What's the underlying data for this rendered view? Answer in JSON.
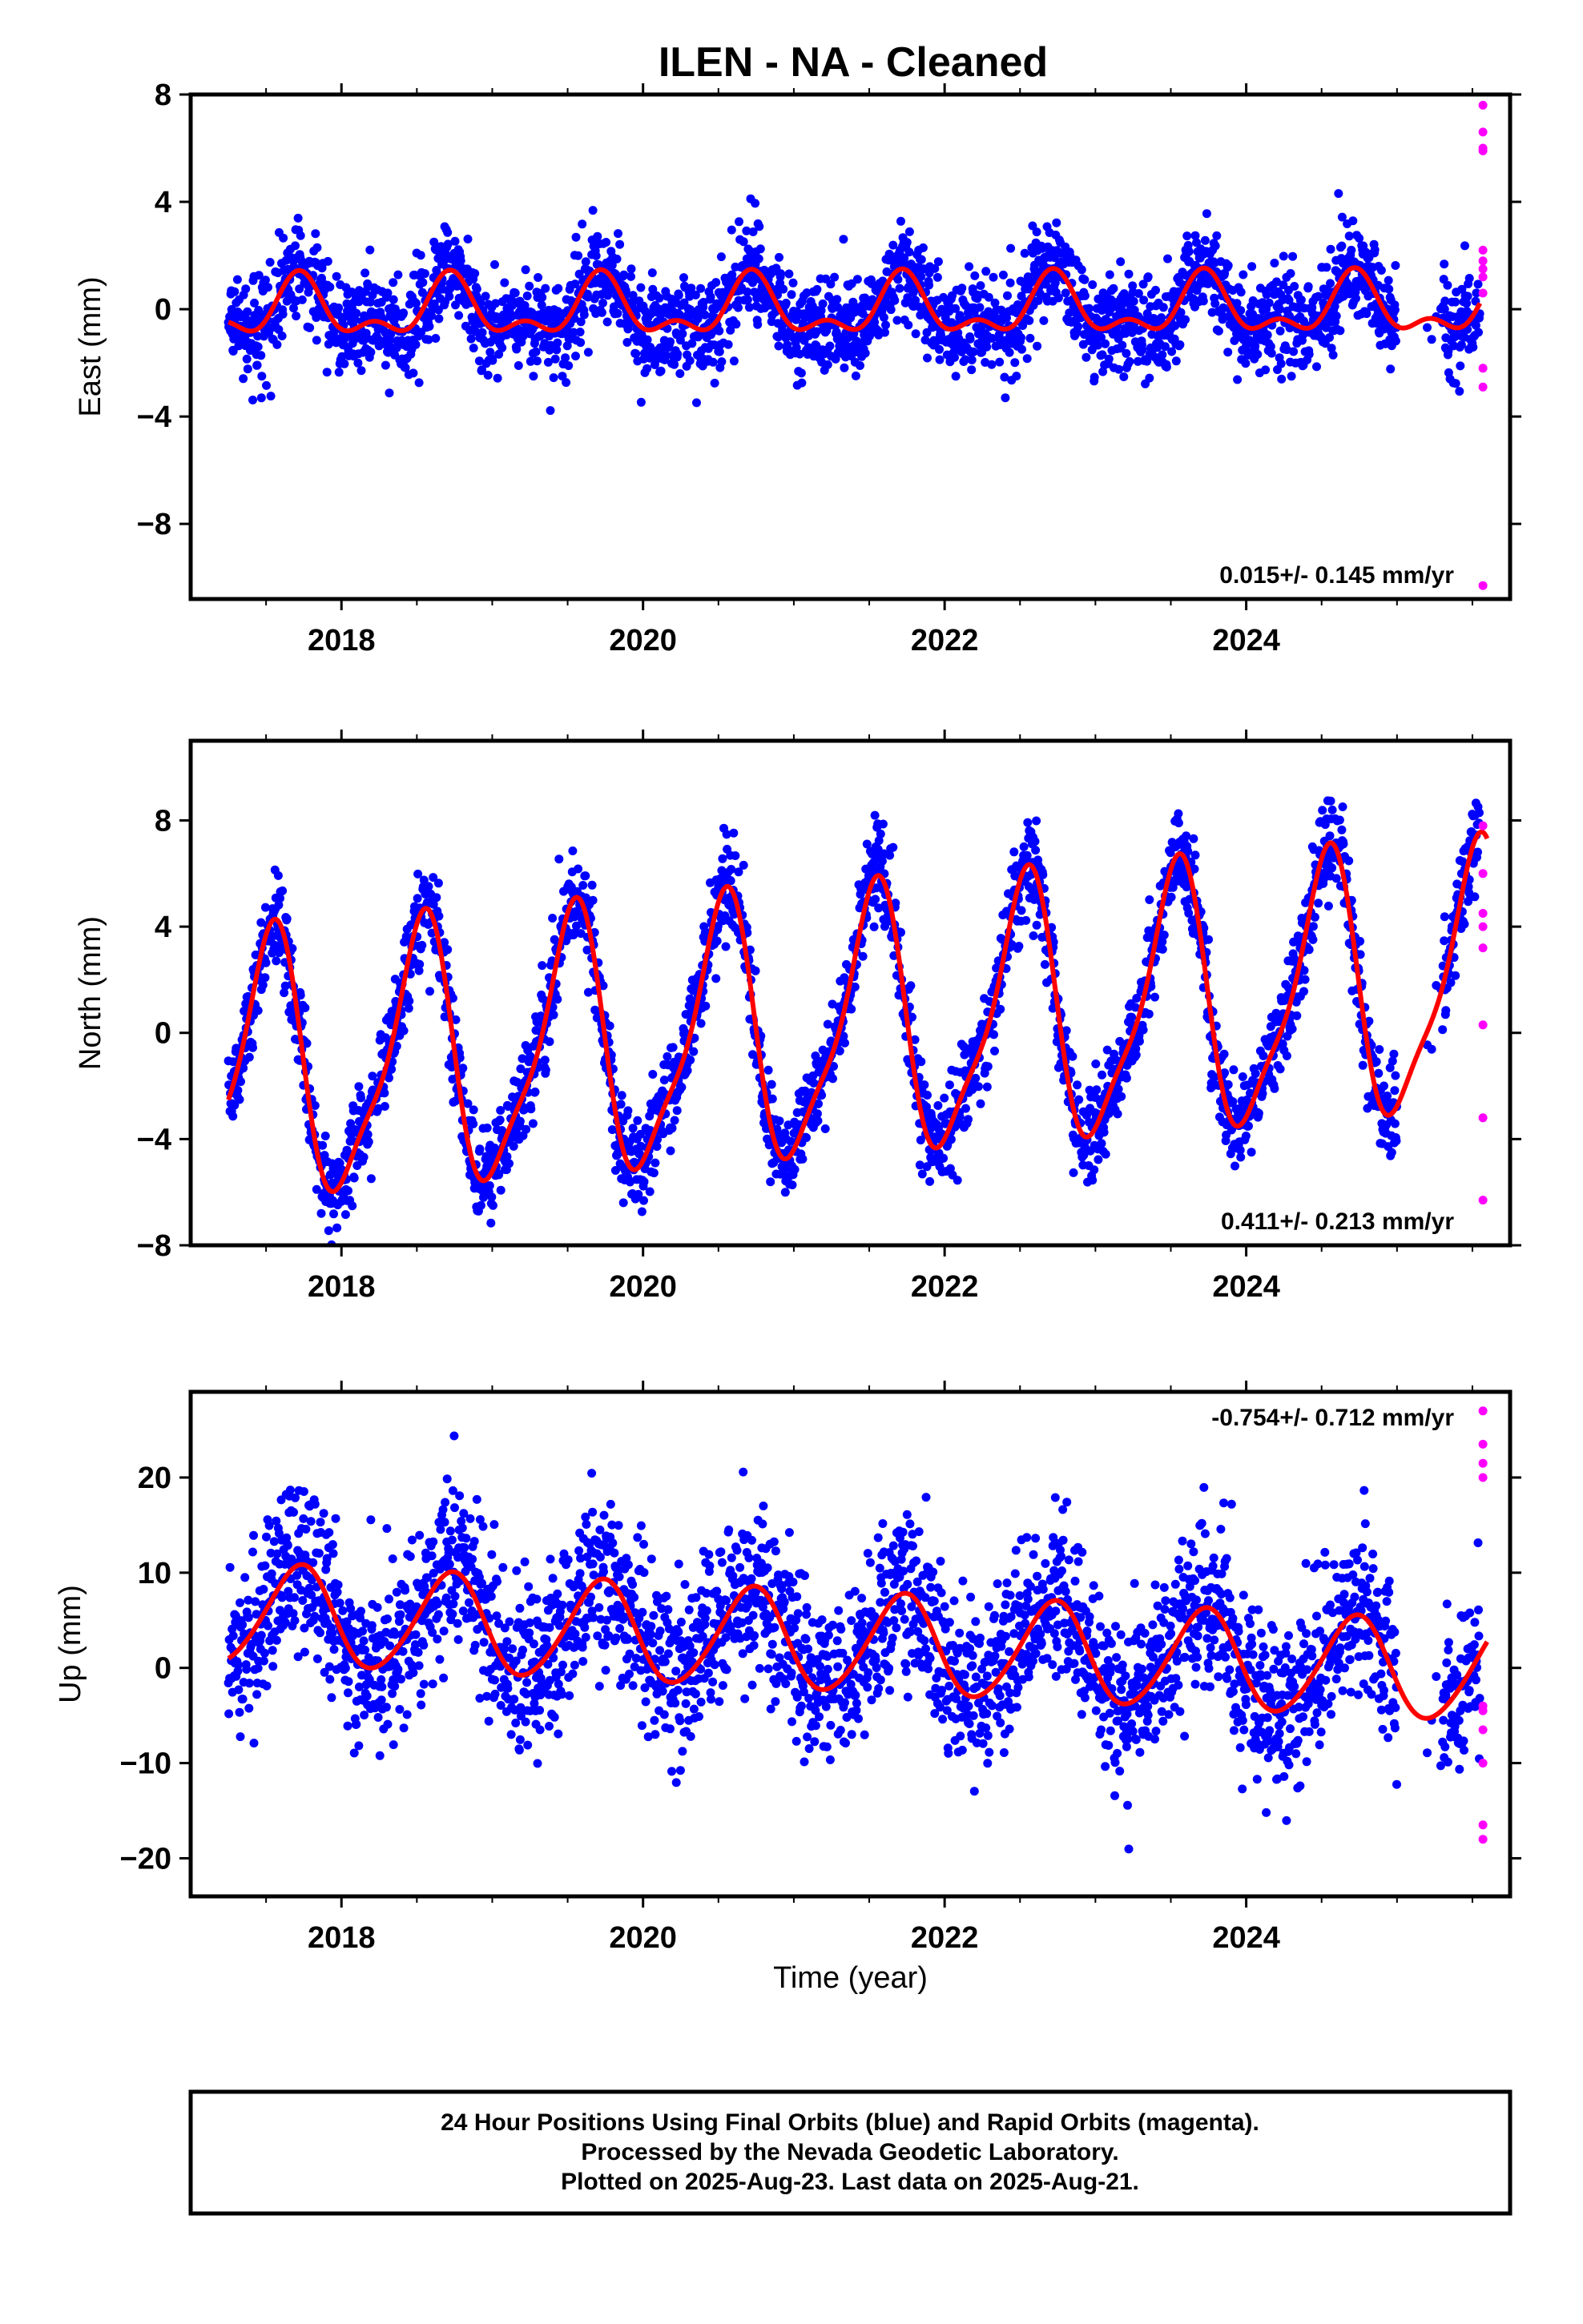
{
  "title": "ILEN  - NA - Cleaned",
  "footer": {
    "lines": [
      "24 Hour Positions Using Final Orbits (blue) and Rapid Orbits (magenta).",
      "Processed by the Nevada Geodetic Laboratory.",
      "Plotted on 2025-Aug-23. Last data on 2025-Aug-21."
    ]
  },
  "colors": {
    "final": "#0000ff",
    "rapid": "#ff00ff",
    "model": "#ff0000",
    "frame": "#000000"
  },
  "chart_data": [
    {
      "type": "scatter",
      "ylabel": "East (mm)",
      "xlabel": "",
      "xlim": [
        2017.0,
        2025.75
      ],
      "ylim": [
        -10.8,
        8.0
      ],
      "x_ticks": [
        "2018",
        "2020",
        "2022",
        "2024"
      ],
      "y_ticks": [
        "8",
        "4",
        "0",
        "−4",
        "−8"
      ],
      "y_tick_values": [
        8,
        4,
        0,
        -4,
        -8
      ],
      "rate_text": "0.015+/- 0.145 mm/yr",
      "model": {
        "mean": 0.0,
        "rate": 0.015,
        "annual_amp": 0.95,
        "annual_peak": 2017.72,
        "semiannual_amp": 0.55,
        "semiannual_peak": 2017.72,
        "noise_sd": 0.9
      },
      "series": [
        {
          "name": "Final Orbits",
          "color": "blue",
          "x_range": [
            2017.25,
            2025.55
          ],
          "gaps": [
            [
              2025.0,
              2025.3
            ]
          ]
        },
        {
          "name": "Rapid Orbits",
          "color": "magenta",
          "x": [
            2025.57,
            2025.57,
            2025.57,
            2025.57,
            2025.57,
            2025.57,
            2025.57,
            2025.57,
            2025.57,
            2025.57,
            2025.57,
            2025.57
          ],
          "y": [
            7.6,
            6.6,
            6.0,
            2.2,
            1.8,
            1.5,
            1.2,
            0.6,
            -2.2,
            -2.9,
            -10.3,
            5.9
          ]
        },
        {
          "name": "Model",
          "color": "red",
          "type": "line",
          "x_range": [
            2017.25,
            2025.55
          ]
        }
      ]
    },
    {
      "type": "scatter",
      "ylabel": "North (mm)",
      "xlabel": "",
      "xlim": [
        2017.0,
        2025.75
      ],
      "ylim": [
        -8.0,
        11.0
      ],
      "x_ticks": [
        "2018",
        "2020",
        "2022",
        "2024"
      ],
      "y_ticks": [
        "8",
        "4",
        "0",
        "−4",
        "−8"
      ],
      "y_tick_values": [
        8,
        4,
        0,
        -4,
        -8
      ],
      "rate_text": "0.411+/- 0.213 mm/yr",
      "model": {
        "mean": 0.2,
        "rate": 0.411,
        "annual_amp": 4.8,
        "annual_peak": 2017.52,
        "semiannual_amp": 1.2,
        "semiannual_peak": 2017.6,
        "noise_sd": 0.9
      },
      "series": [
        {
          "name": "Final Orbits",
          "color": "blue",
          "x_range": [
            2017.25,
            2025.55
          ],
          "gaps": [
            [
              2025.0,
              2025.3
            ]
          ]
        },
        {
          "name": "Rapid Orbits",
          "color": "magenta",
          "x": [
            2025.57,
            2025.57,
            2025.57,
            2025.57,
            2025.57,
            2025.57,
            2025.57,
            2025.57
          ],
          "y": [
            7.8,
            4.5,
            4.0,
            3.2,
            0.3,
            -3.2,
            -6.3,
            6.0
          ]
        },
        {
          "name": "Model",
          "color": "red",
          "type": "line",
          "x_range": [
            2017.25,
            2025.6
          ]
        }
      ]
    },
    {
      "type": "scatter",
      "ylabel": "Up (mm)",
      "xlabel": "Time (year)",
      "xlim": [
        2017.0,
        2025.75
      ],
      "ylim": [
        -24.0,
        29.0
      ],
      "x_ticks": [
        "2018",
        "2020",
        "2022",
        "2024"
      ],
      "y_ticks": [
        "20",
        "10",
        "0",
        "−10",
        "−20"
      ],
      "y_tick_values": [
        20,
        10,
        0,
        -10,
        -20
      ],
      "rate_text": "-0.754+/- 0.712 mm/yr",
      "model": {
        "mean": 2.5,
        "rate": -0.754,
        "annual_amp": 5.2,
        "annual_peak": 2017.72,
        "semiannual_amp": 0.5,
        "semiannual_peak": 2017.8,
        "noise_sd": 4.5
      },
      "series": [
        {
          "name": "Final Orbits",
          "color": "blue",
          "x_range": [
            2017.25,
            2025.55
          ],
          "gaps": [
            [
              2025.0,
              2025.3
            ]
          ]
        },
        {
          "name": "Rapid Orbits",
          "color": "magenta",
          "x": [
            2025.57,
            2025.57,
            2025.57,
            2025.57,
            2025.57,
            2025.57,
            2025.57,
            2025.57,
            2025.57,
            2025.57
          ],
          "y": [
            27.0,
            23.5,
            21.5,
            20.0,
            -4.0,
            -4.5,
            -6.5,
            -10.0,
            -16.5,
            -18.0
          ]
        },
        {
          "name": "Model",
          "color": "red",
          "type": "line",
          "x_range": [
            2017.25,
            2025.6
          ]
        }
      ]
    }
  ]
}
